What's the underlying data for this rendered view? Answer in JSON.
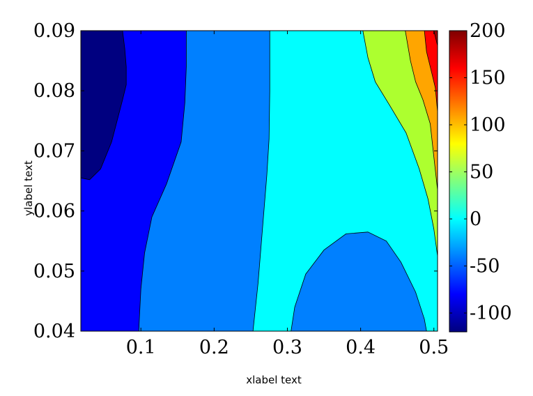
{
  "chart_data": {
    "type": "filled-contour",
    "xlabel": "xlabel text",
    "ylabel": "ylabel text",
    "xlim": [
      0.018,
      0.505
    ],
    "ylim": [
      0.04,
      0.09
    ],
    "xticks": [
      "0.1",
      "0.2",
      "0.3",
      "0.4",
      "0.5"
    ],
    "yticks": [
      "0.04",
      "0.05",
      "0.06",
      "0.07",
      "0.08",
      "0.09"
    ],
    "colorbar": {
      "colormap": "jet",
      "range": [
        -120,
        200
      ],
      "ticks": [
        "-100",
        "-50",
        "0",
        "50",
        "100",
        "150",
        "200"
      ],
      "tick_values": [
        -100,
        -50,
        0,
        50,
        100,
        150,
        200
      ]
    },
    "levels": [
      {
        "range": "below -100",
        "color": "#000080"
      },
      {
        "range": "-100 to -50",
        "color": "#0000ff"
      },
      {
        "range": "-50 to 0",
        "color": "#0080ff"
      },
      {
        "range": "0 to 50",
        "color": "#00ffff"
      },
      {
        "range": "50 to 100",
        "color": "#adff2f"
      },
      {
        "range": "100 to 150",
        "color": "#ffa500"
      },
      {
        "range": "150 to 200",
        "color": "#ff0000"
      },
      {
        "range": "above 200",
        "color": "#a00000"
      }
    ],
    "contour_boundaries": {
      "minus100_left_lobe": [
        [
          0.018,
          0.0655
        ],
        [
          0.03,
          0.0652
        ],
        [
          0.045,
          0.067
        ],
        [
          0.06,
          0.0715
        ],
        [
          0.075,
          0.0785
        ],
        [
          0.08,
          0.081
        ],
        [
          0.08,
          0.084
        ],
        [
          0.078,
          0.087
        ],
        [
          0.075,
          0.09
        ]
      ],
      "minus50": [
        [
          0.097,
          0.04
        ],
        [
          0.1,
          0.047
        ],
        [
          0.105,
          0.053
        ],
        [
          0.115,
          0.059
        ],
        [
          0.135,
          0.0645
        ],
        [
          0.155,
          0.0715
        ],
        [
          0.16,
          0.078
        ],
        [
          0.162,
          0.084
        ],
        [
          0.162,
          0.09
        ]
      ],
      "zero": [
        [
          0.253,
          0.04
        ],
        [
          0.26,
          0.048
        ],
        [
          0.266,
          0.057
        ],
        [
          0.272,
          0.066
        ],
        [
          0.275,
          0.072
        ],
        [
          0.276,
          0.08
        ],
        [
          0.276,
          0.09
        ]
      ],
      "minus50_bottom_bubble": [
        [
          0.305,
          0.04
        ],
        [
          0.31,
          0.044
        ],
        [
          0.325,
          0.0495
        ],
        [
          0.35,
          0.0535
        ],
        [
          0.38,
          0.0562
        ],
        [
          0.41,
          0.0565
        ],
        [
          0.435,
          0.055
        ],
        [
          0.455,
          0.0515
        ],
        [
          0.475,
          0.0465
        ],
        [
          0.487,
          0.042
        ],
        [
          0.49,
          0.04
        ]
      ],
      "plus50": [
        [
          0.505,
          0.0525
        ],
        [
          0.5,
          0.057
        ],
        [
          0.492,
          0.062
        ],
        [
          0.48,
          0.067
        ],
        [
          0.462,
          0.073
        ],
        [
          0.44,
          0.0775
        ],
        [
          0.42,
          0.0815
        ],
        [
          0.41,
          0.0855
        ],
        [
          0.403,
          0.09
        ]
      ],
      "plus100": [
        [
          0.505,
          0.0635
        ],
        [
          0.5,
          0.069
        ],
        [
          0.495,
          0.0745
        ],
        [
          0.485,
          0.0785
        ],
        [
          0.475,
          0.0815
        ],
        [
          0.468,
          0.085
        ],
        [
          0.461,
          0.09
        ]
      ],
      "plus150": [
        [
          0.505,
          0.0765
        ],
        [
          0.502,
          0.0805
        ],
        [
          0.497,
          0.083
        ],
        [
          0.49,
          0.0865
        ],
        [
          0.487,
          0.09
        ]
      ],
      "plus200": [
        [
          0.505,
          0.0875
        ],
        [
          0.5,
          0.09
        ]
      ]
    }
  }
}
